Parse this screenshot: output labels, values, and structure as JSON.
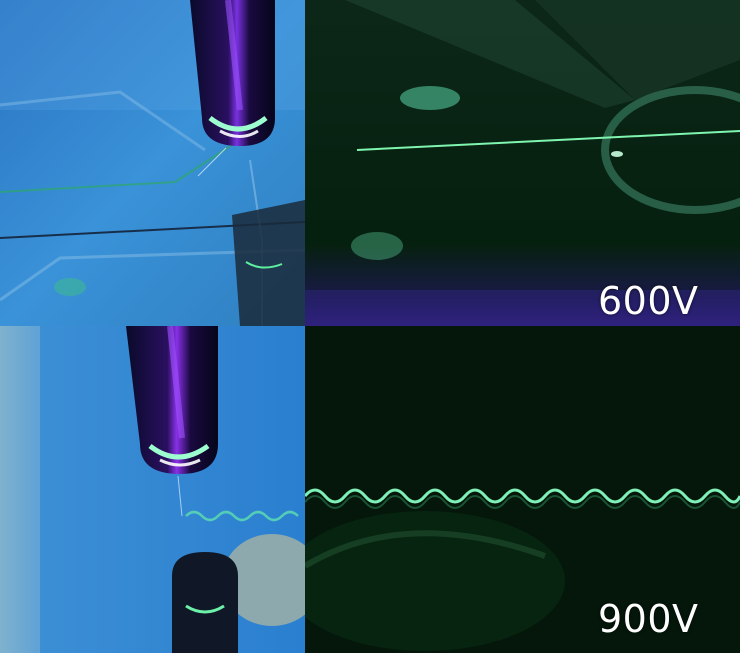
{
  "panels": {
    "top_right": {
      "voltage_label": "600V"
    },
    "bottom_right": {
      "voltage_label": "900V"
    }
  },
  "colors": {
    "blue_background": "#2f86cf",
    "dark_background": "#051a0c",
    "fluorescent_green": "#6cf0a8",
    "violet_glow": "#8a3cf0"
  },
  "icons": [
    "needle-electrode",
    "fiber-jet"
  ]
}
